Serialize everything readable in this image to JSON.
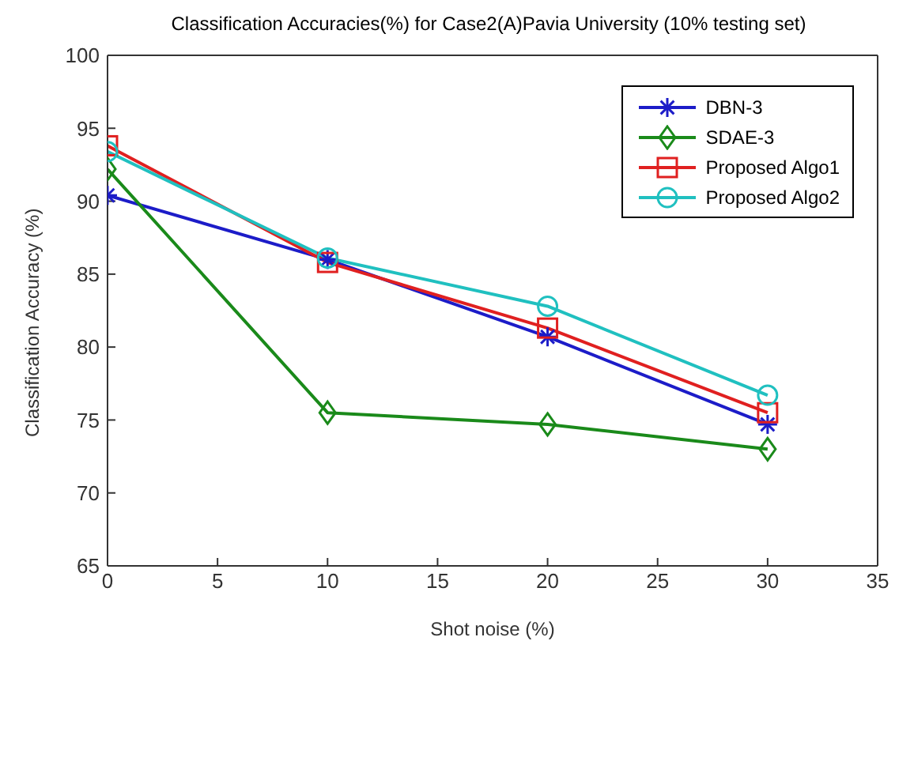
{
  "chart_data": {
    "type": "line",
    "title": "Classification Accuracies(%) for Case2(A)Pavia University (10% testing set)",
    "xlabel": "Shot noise (%)",
    "ylabel": "Classification Accuracy (%)",
    "x": [
      0,
      10,
      20,
      30
    ],
    "series": [
      {
        "name": "DBN-3",
        "color": "#1c1cc8",
        "marker": "cross",
        "values": [
          90.4,
          86.0,
          80.7,
          74.7
        ]
      },
      {
        "name": "SDAE-3",
        "color": "#1a8a1a",
        "marker": "diamond",
        "values": [
          92.2,
          75.5,
          74.7,
          73.0
        ]
      },
      {
        "name": "Proposed Algo1",
        "color": "#e02020",
        "marker": "square",
        "values": [
          93.8,
          85.8,
          81.3,
          75.5
        ]
      },
      {
        "name": "Proposed Algo2",
        "color": "#20c0c0",
        "marker": "circle",
        "values": [
          93.4,
          86.1,
          82.8,
          76.7
        ]
      }
    ],
    "xlim": [
      0,
      35
    ],
    "xticks": [
      0,
      5,
      10,
      15,
      20,
      25,
      30,
      35
    ],
    "ylim": [
      65,
      100
    ],
    "yticks": [
      65,
      70,
      75,
      80,
      85,
      90,
      95,
      100
    ],
    "grid": false,
    "legend": "top right"
  }
}
